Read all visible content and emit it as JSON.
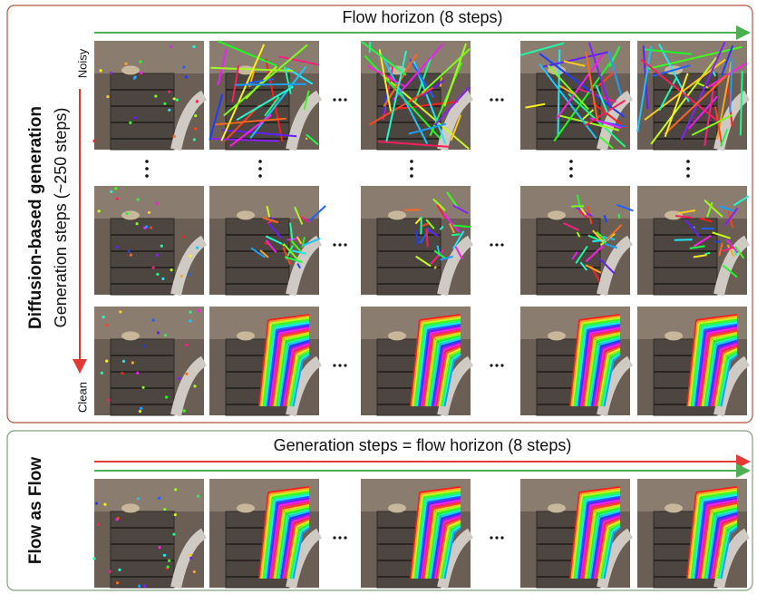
{
  "top_panel": {
    "horizontal_label": "Flow horizon (8 steps)",
    "row_title": "Diffusion-based generation",
    "vertical_label": "Generation steps (~250 steps)",
    "start_label": "Noisy",
    "end_label": "Clean"
  },
  "bottom_panel": {
    "horizontal_label": "Generation steps = flow horizon (8 steps)",
    "row_title": "Flow as Flow"
  }
}
